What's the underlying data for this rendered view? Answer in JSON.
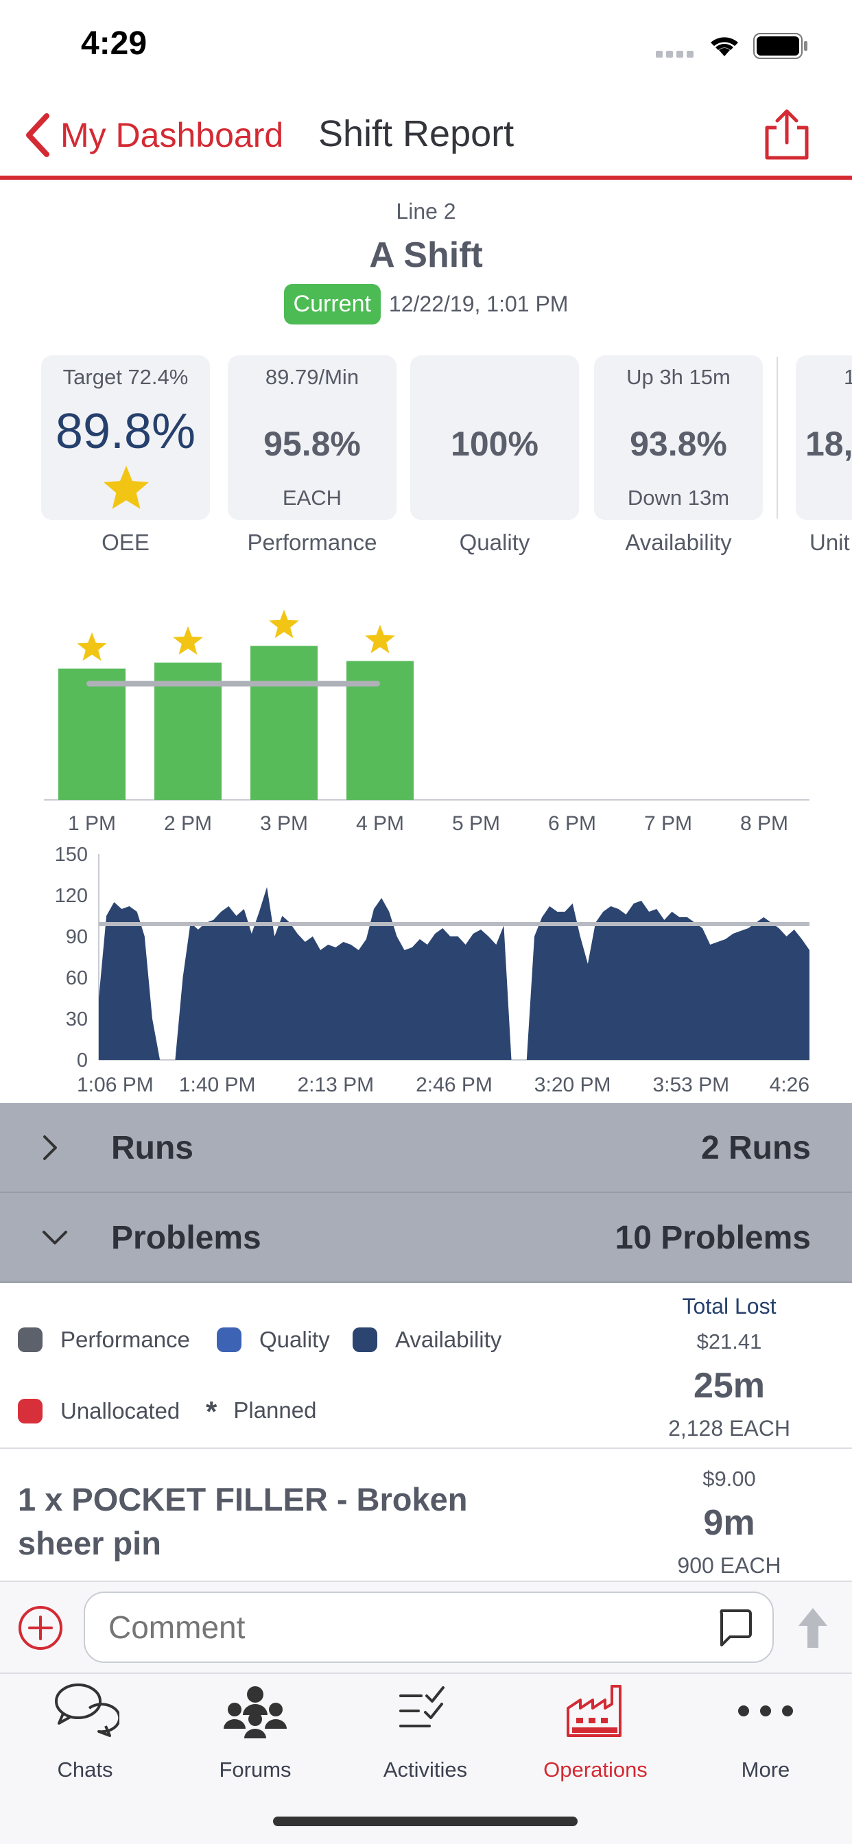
{
  "status": {
    "time": "4:29"
  },
  "nav": {
    "back_label": "My Dashboard",
    "title": "Shift Report"
  },
  "header": {
    "line": "Line 2",
    "shift": "A Shift",
    "badge": "Current",
    "date": "12/22/19, 1:01 PM"
  },
  "kpis": [
    {
      "top": "Target 72.4%",
      "value": "89.8%",
      "bottom": "",
      "label": "OEE"
    },
    {
      "top": "89.79/Min",
      "value": "95.8%",
      "bottom": "EACH",
      "label": "Performance"
    },
    {
      "top": "",
      "value": "100%",
      "bottom": "",
      "label": "Quality"
    },
    {
      "top": "Up 3h 15m",
      "value": "93.8%",
      "bottom": "Down 13m",
      "label": "Availability"
    },
    {
      "top": "1",
      "value": "18,",
      "bottom": "",
      "label": "Unit"
    }
  ],
  "chart_data": [
    {
      "type": "bar",
      "categories": [
        "1 PM",
        "2 PM",
        "3 PM",
        "4 PM",
        "5 PM",
        "6 PM",
        "7 PM",
        "8 PM"
      ],
      "values": [
        87,
        91,
        102,
        92,
        null,
        null,
        null,
        null
      ],
      "target": 77,
      "star_markers": [
        true,
        true,
        true,
        true,
        false,
        false,
        false,
        false
      ],
      "colors": {
        "bar": "#58bb5a",
        "target": "#aeb1b8",
        "star": "#f2c515"
      }
    },
    {
      "type": "area",
      "x_tick_labels": [
        "1:06 PM",
        "1:40 PM",
        "2:13 PM",
        "2:46 PM",
        "3:20 PM",
        "3:53 PM",
        "4:26"
      ],
      "y_ticks": [
        0,
        30,
        60,
        90,
        120,
        150
      ],
      "ylim": [
        0,
        150
      ],
      "target": 99,
      "values": [
        45,
        105,
        115,
        110,
        112,
        108,
        90,
        30,
        0,
        0,
        0,
        60,
        100,
        95,
        100,
        102,
        108,
        112,
        105,
        110,
        92,
        108,
        126,
        90,
        105,
        100,
        92,
        86,
        90,
        80,
        84,
        82,
        86,
        84,
        80,
        88,
        110,
        118,
        108,
        90,
        80,
        82,
        88,
        84,
        92,
        96,
        90,
        90,
        84,
        92,
        95,
        90,
        84,
        98,
        0,
        0,
        0,
        90,
        104,
        112,
        108,
        108,
        114,
        90,
        70,
        100,
        108,
        112,
        110,
        106,
        114,
        116,
        108,
        110,
        102,
        108,
        104,
        104,
        100,
        96,
        84,
        86,
        88,
        92,
        94,
        96,
        100,
        104,
        100,
        96,
        90,
        95,
        88,
        80
      ],
      "colors": {
        "area": "#2c4570",
        "target": "#b8bbc2"
      }
    }
  ],
  "sections": {
    "runs": {
      "name": "Runs",
      "count": "2 Runs"
    },
    "problems": {
      "name": "Problems",
      "count": "10 Problems"
    }
  },
  "legend": {
    "performance": "Performance",
    "quality": "Quality",
    "availability": "Availability",
    "unallocated": "Unallocated",
    "planned_mark": "*",
    "planned": "Planned",
    "colors": {
      "performance": "#5d616b",
      "quality": "#3d63b5",
      "availability": "#2c4570",
      "unallocated": "#d8303a"
    }
  },
  "totals": {
    "label": "Total Lost",
    "money": "$21.41",
    "time": "25m",
    "units": "2,128 EACH"
  },
  "problem_item": {
    "title": "1 x POCKET FILLER - Broken sheer pin",
    "money": "$9.00",
    "time": "9m",
    "units": "900 EACH"
  },
  "comment": {
    "placeholder": "Comment"
  },
  "tabs": [
    {
      "label": "Chats",
      "icon": "chat-bubbles-icon"
    },
    {
      "label": "Forums",
      "icon": "people-group-icon"
    },
    {
      "label": "Activities",
      "icon": "checklist-icon"
    },
    {
      "label": "Operations",
      "icon": "factory-icon",
      "active": true
    },
    {
      "label": "More",
      "icon": "ellipsis-icon"
    }
  ],
  "accent_color": "#d42a33"
}
